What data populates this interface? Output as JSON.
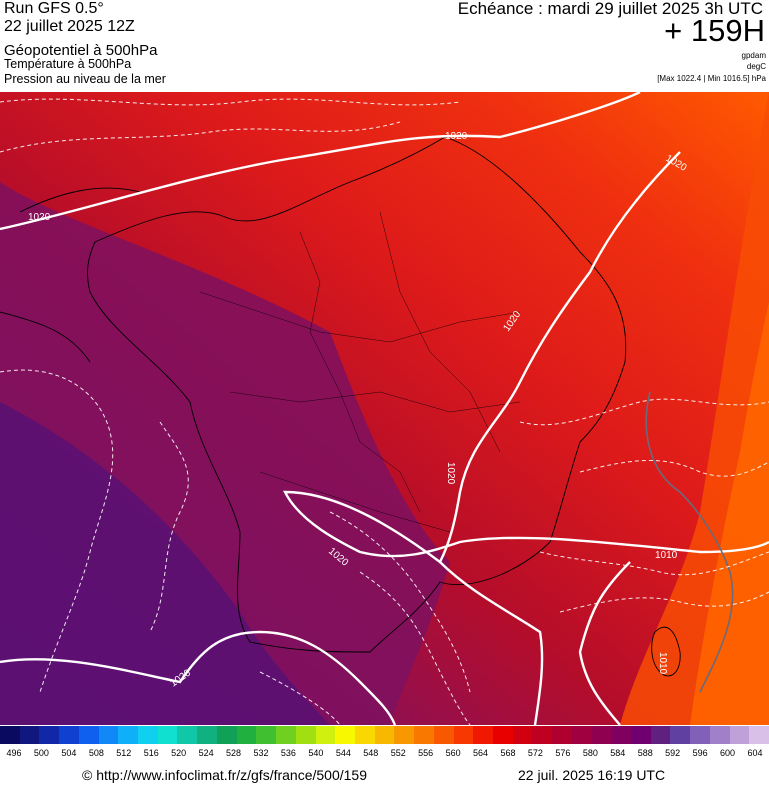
{
  "header": {
    "run": "Run GFS 0.5°",
    "run_date": "22 juillet 2025 12Z",
    "geopotential": "Géopotentiel à 500hPa",
    "temperature": "Température à 500hPa",
    "pressure": "Pression au niveau de la mer",
    "echeance": "Echéance : mardi 29 juillet 2025 3h UTC",
    "hours": "+ 159H",
    "unit1": "gpdam",
    "unit2": "degC",
    "range": "[Max 1022.4 | Min 1016.5] hPa"
  },
  "map": {
    "isobar_labels": [
      "1020",
      "1020",
      "1020",
      "1020",
      "1020",
      "1020",
      "1020",
      "1010",
      "1010"
    ],
    "colors": {
      "purple": "#5a1070",
      "magenta": "#8a1058",
      "crimson": "#b50d2a",
      "red": "#dd1a1a",
      "red_orange": "#f0300f",
      "orange": "#ff5a00"
    }
  },
  "scale": {
    "ticks": [
      "496",
      "500",
      "504",
      "508",
      "512",
      "516",
      "520",
      "524",
      "528",
      "532",
      "536",
      "540",
      "544",
      "548",
      "552",
      "556",
      "560",
      "564",
      "568",
      "572",
      "576",
      "580",
      "584",
      "588",
      "592",
      "596",
      "600",
      "604"
    ],
    "colors": [
      "#0a0a60",
      "#101880",
      "#1028a8",
      "#1040d0",
      "#1060f0",
      "#1088f8",
      "#10b0f8",
      "#10d0f0",
      "#10e0d0",
      "#10c8a8",
      "#10b080",
      "#10a058",
      "#20b040",
      "#40c030",
      "#70d020",
      "#a0e010",
      "#d0f010",
      "#f8f800",
      "#f8d800",
      "#f8b800",
      "#f89800",
      "#f87800",
      "#f85800",
      "#f83800",
      "#f01800",
      "#e80000",
      "#d00010",
      "#c00020",
      "#b00030",
      "#a00040",
      "#900050",
      "#800060",
      "#700070",
      "#602080",
      "#6040a0",
      "#8060b8",
      "#a080c8",
      "#c0a0d8",
      "#d8c0e8"
    ]
  },
  "footer": {
    "credit": "© http://www.infoclimat.fr/z/gfs/france/500/159",
    "timestamp": "22 juil. 2025 16:19 UTC"
  }
}
